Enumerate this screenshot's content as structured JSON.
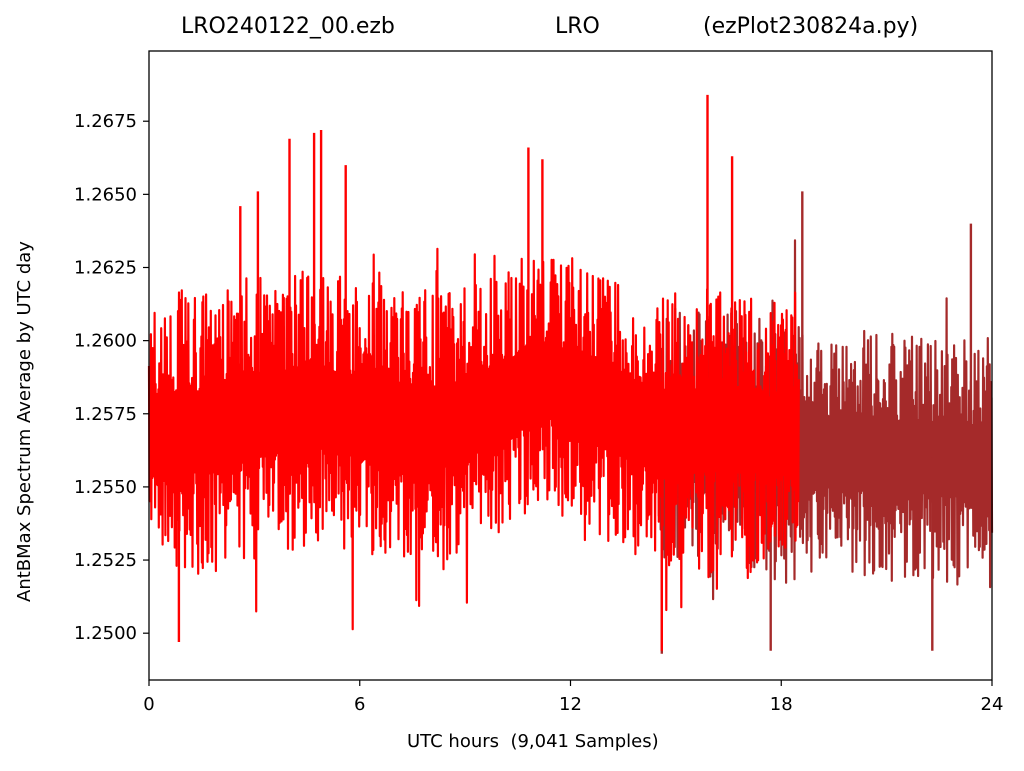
{
  "title": {
    "left": "LRO240122_00.ezb",
    "center": "LRO",
    "right": "(ezPlot230824a.py)"
  },
  "colors": {
    "series_primary": "#ff0000",
    "series_secondary": "#a52a2a",
    "axis": "#000000",
    "background": "#ffffff"
  },
  "chart_data": {
    "type": "line",
    "xlabel": "UTC hours  (9,041 Samples)",
    "ylabel": "AntBMax Spectrum Average by UTC day",
    "xlim": [
      0,
      24
    ],
    "ylim": [
      1.2484,
      1.2699
    ],
    "xticks": [
      0,
      6,
      12,
      18,
      24
    ],
    "xtick_labels": [
      "0",
      "6",
      "12",
      "18",
      "24"
    ],
    "yticks": [
      1.25,
      1.2525,
      1.255,
      1.2575,
      1.26,
      1.2625,
      1.265,
      1.2675
    ],
    "ytick_labels": [
      "1.2500",
      "1.2525",
      "1.2550",
      "1.2575",
      "1.2600",
      "1.2625",
      "1.2650",
      "1.2675"
    ],
    "grid": false,
    "sample_count": 9041,
    "series": [
      {
        "color": "#ff0000",
        "x_range": [
          0,
          18.5
        ],
        "envelope": {
          "x": [
            0,
            1,
            2,
            3,
            4,
            5,
            6,
            7,
            8,
            9,
            10,
            11,
            12,
            13,
            14,
            15,
            16,
            17,
            18.5
          ],
          "upper": [
            1.2605,
            1.2608,
            1.2608,
            1.2612,
            1.2615,
            1.2615,
            1.2612,
            1.261,
            1.2608,
            1.261,
            1.2615,
            1.2622,
            1.262,
            1.2612,
            1.2608,
            1.2608,
            1.2608,
            1.2606,
            1.2602
          ],
          "lower": [
            1.2532,
            1.253,
            1.253,
            1.2535,
            1.2538,
            1.2538,
            1.2535,
            1.2535,
            1.2532,
            1.2536,
            1.2542,
            1.2552,
            1.2548,
            1.254,
            1.2535,
            1.253,
            1.253,
            1.2532,
            1.253
          ]
        },
        "peaks": [
          {
            "x": 0.85,
            "y": 1.2497
          },
          {
            "x": 2.6,
            "y": 1.2646
          },
          {
            "x": 3.1,
            "y": 1.2651
          },
          {
            "x": 4.0,
            "y": 1.2669
          },
          {
            "x": 4.7,
            "y": 1.2671
          },
          {
            "x": 4.9,
            "y": 1.2672
          },
          {
            "x": 5.6,
            "y": 1.266
          },
          {
            "x": 10.8,
            "y": 1.2666
          },
          {
            "x": 11.2,
            "y": 1.2662
          },
          {
            "x": 14.6,
            "y": 1.2494
          },
          {
            "x": 15.9,
            "y": 1.2684
          },
          {
            "x": 16.6,
            "y": 1.2663
          }
        ]
      },
      {
        "color": "#a52a2a",
        "x_range": [
          14.5,
          24
        ],
        "envelope": {
          "x": [
            14.5,
            16,
            18,
            19,
            20,
            21,
            22,
            23,
            24
          ],
          "upper": [
            1.26,
            1.2602,
            1.26,
            1.2597,
            1.2595,
            1.2595,
            1.2595,
            1.2594,
            1.2593
          ],
          "lower": [
            1.253,
            1.2528,
            1.2526,
            1.2528,
            1.2527,
            1.2526,
            1.2526,
            1.2525,
            1.2524
          ]
        },
        "peaks": [
          {
            "x": 14.6,
            "y": 1.2493
          },
          {
            "x": 17.7,
            "y": 1.2494
          },
          {
            "x": 18.6,
            "y": 1.2651
          },
          {
            "x": 22.3,
            "y": 1.2494
          },
          {
            "x": 23.4,
            "y": 1.264
          }
        ]
      }
    ]
  }
}
